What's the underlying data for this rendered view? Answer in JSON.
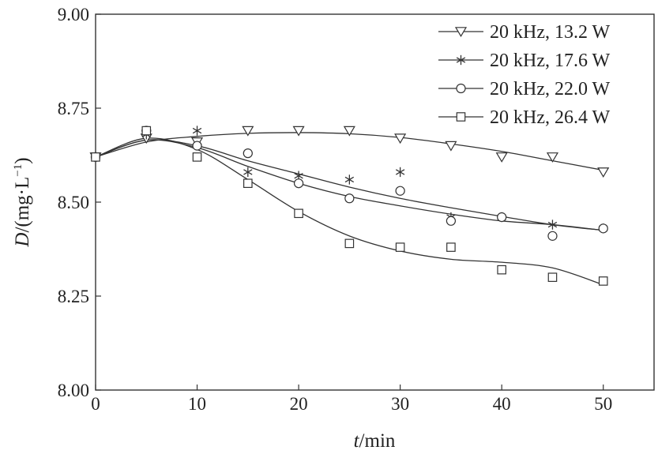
{
  "chart_data": {
    "type": "scatter",
    "x_axis": {
      "label_italic": "t",
      "label_rest": "/min",
      "min": 0,
      "max": 55,
      "ticks": [
        0,
        10,
        20,
        30,
        40,
        50
      ],
      "tick_labels": [
        "0",
        "10",
        "20",
        "30",
        "40",
        "50"
      ]
    },
    "y_axis": {
      "label_italic": "D",
      "label_rest": "/(mg·L",
      "label_sup": "−1",
      "label_close": ")",
      "min": 8.0,
      "max": 9.0,
      "ticks": [
        8.0,
        8.25,
        8.5,
        8.75,
        9.0
      ],
      "tick_labels": [
        "8.00",
        "8.25",
        "8.50",
        "8.75",
        "9.00"
      ]
    },
    "legend_position": "top-right",
    "grid": false,
    "x": [
      0,
      5,
      10,
      15,
      20,
      25,
      30,
      35,
      40,
      45,
      50
    ],
    "series": [
      {
        "name": "20 kHz, 13.2 W",
        "marker": "triangle-down",
        "values": [
          8.62,
          8.67,
          8.66,
          8.69,
          8.69,
          8.69,
          8.67,
          8.65,
          8.62,
          8.62,
          8.58
        ],
        "fit": [
          [
            0,
            8.62
          ],
          [
            5,
            8.66
          ],
          [
            10,
            8.675
          ],
          [
            15,
            8.683
          ],
          [
            20,
            8.685
          ],
          [
            25,
            8.682
          ],
          [
            30,
            8.672
          ],
          [
            35,
            8.655
          ],
          [
            40,
            8.635
          ],
          [
            45,
            8.61
          ],
          [
            50,
            8.585
          ]
        ]
      },
      {
        "name": "20 kHz, 17.6 W",
        "marker": "asterisk",
        "values": [
          8.62,
          8.68,
          8.69,
          8.58,
          8.57,
          8.56,
          8.58,
          8.46,
          8.46,
          8.44,
          8.43
        ],
        "fit": [
          [
            0,
            8.62
          ],
          [
            5,
            8.665
          ],
          [
            10,
            8.65
          ],
          [
            15,
            8.61
          ],
          [
            20,
            8.575
          ],
          [
            25,
            8.54
          ],
          [
            30,
            8.51
          ],
          [
            35,
            8.485
          ],
          [
            40,
            8.462
          ],
          [
            45,
            8.44
          ],
          [
            50,
            8.425
          ]
        ]
      },
      {
        "name": "20 kHz, 22.0 W",
        "marker": "circle",
        "values": [
          8.62,
          8.69,
          8.65,
          8.63,
          8.55,
          8.51,
          8.53,
          8.45,
          8.46,
          8.41,
          8.43
        ],
        "fit": [
          [
            0,
            8.62
          ],
          [
            5,
            8.665
          ],
          [
            10,
            8.645
          ],
          [
            15,
            8.595
          ],
          [
            20,
            8.55
          ],
          [
            25,
            8.515
          ],
          [
            30,
            8.49
          ],
          [
            35,
            8.468
          ],
          [
            40,
            8.45
          ],
          [
            45,
            8.44
          ],
          [
            50,
            8.425
          ]
        ]
      },
      {
        "name": "20 kHz, 26.4 W",
        "marker": "square",
        "values": [
          8.62,
          8.69,
          8.62,
          8.55,
          8.47,
          8.39,
          8.38,
          8.38,
          8.32,
          8.3,
          8.29
        ],
        "fit": [
          [
            0,
            8.62
          ],
          [
            5,
            8.67
          ],
          [
            10,
            8.64
          ],
          [
            15,
            8.56
          ],
          [
            20,
            8.475
          ],
          [
            25,
            8.41
          ],
          [
            30,
            8.37
          ],
          [
            35,
            8.348
          ],
          [
            40,
            8.34
          ],
          [
            45,
            8.325
          ],
          [
            50,
            8.28
          ]
        ]
      }
    ]
  }
}
